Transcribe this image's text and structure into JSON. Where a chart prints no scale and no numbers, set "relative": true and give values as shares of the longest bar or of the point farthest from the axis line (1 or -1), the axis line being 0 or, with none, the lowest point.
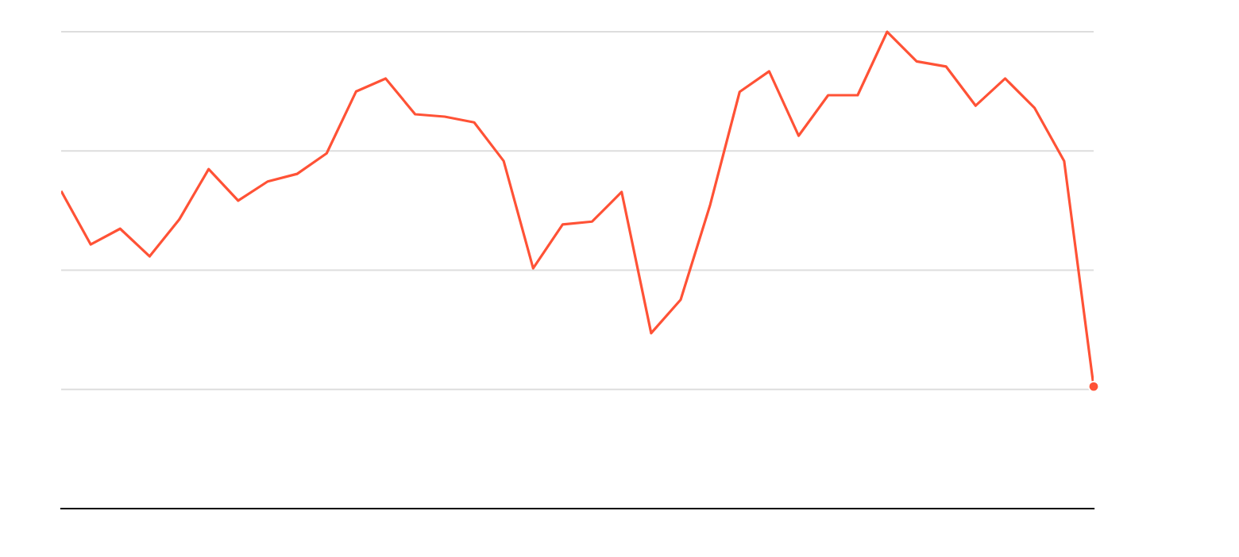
{
  "chart_data": {
    "type": "line",
    "relative": true,
    "grid": "y",
    "categories": [
      null,
      null,
      null,
      null,
      null,
      null,
      null,
      null,
      null,
      null,
      null,
      null,
      null,
      null,
      null,
      null,
      null,
      null,
      null,
      null,
      null,
      null,
      null,
      null,
      null,
      null,
      null,
      null,
      null,
      null,
      null,
      null,
      null,
      null,
      null,
      null
    ],
    "series": [
      {
        "color": "#ff5236",
        "values": [
          0.666,
          0.554,
          0.587,
          0.529,
          0.606,
          0.712,
          0.646,
          0.686,
          0.702,
          0.745,
          0.875,
          0.902,
          0.827,
          0.822,
          0.81,
          0.729,
          0.504,
          0.596,
          0.602,
          0.664,
          0.368,
          0.438,
          0.637,
          0.874,
          0.917,
          0.782,
          0.867,
          0.867,
          1,
          0.938,
          0.927,
          0.845,
          0.902,
          0.84,
          0.729,
          0.256
        ]
      },
      {
        "marker": "circle",
        "color": "#ff5236",
        "values": [
          null,
          null,
          null,
          null,
          null,
          null,
          null,
          null,
          null,
          null,
          null,
          null,
          null,
          null,
          null,
          null,
          null,
          null,
          null,
          null,
          null,
          null,
          null,
          null,
          null,
          null,
          null,
          null,
          null,
          null,
          null,
          null,
          null,
          null,
          null,
          0.256
        ]
      }
    ]
  }
}
